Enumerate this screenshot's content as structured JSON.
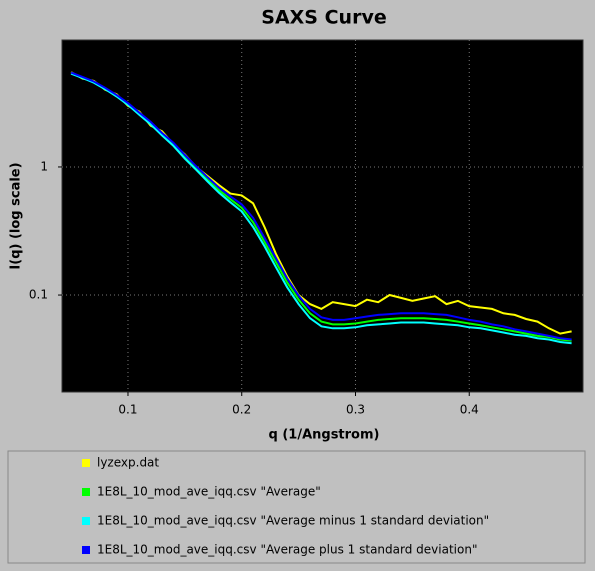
{
  "chart_data": {
    "type": "line",
    "title": "SAXS Curve",
    "xlabel": "q (1/Angstrom)",
    "ylabel": "I(q) (log scale)",
    "x": [
      0.05,
      0.06,
      0.07,
      0.08,
      0.09,
      0.1,
      0.11,
      0.12,
      0.13,
      0.14,
      0.15,
      0.16,
      0.17,
      0.18,
      0.19,
      0.2,
      0.21,
      0.22,
      0.23,
      0.24,
      0.25,
      0.26,
      0.27,
      0.28,
      0.29,
      0.3,
      0.31,
      0.32,
      0.33,
      0.34,
      0.35,
      0.36,
      0.37,
      0.38,
      0.39,
      0.4,
      0.41,
      0.42,
      0.43,
      0.44,
      0.45,
      0.46,
      0.47,
      0.48,
      0.49
    ],
    "series": [
      {
        "name": "lyzexp.dat",
        "color": "#ffff00",
        "values": [
          5.5,
          4.9,
          4.7,
          4.0,
          3.7,
          3.0,
          2.7,
          2.1,
          1.9,
          1.5,
          1.25,
          1.0,
          0.85,
          0.72,
          0.62,
          0.6,
          0.52,
          0.34,
          0.21,
          0.14,
          0.1,
          0.085,
          0.078,
          0.088,
          0.085,
          0.082,
          0.092,
          0.088,
          0.1,
          0.095,
          0.09,
          0.094,
          0.098,
          0.085,
          0.09,
          0.082,
          0.08,
          0.078,
          0.072,
          0.07,
          0.065,
          0.062,
          0.055,
          0.05,
          0.052
        ]
      },
      {
        "name": "1E8L_10_mod_ave_iqq.csv \"Average\"",
        "color": "#00ff00",
        "values": [
          5.4,
          5.0,
          4.6,
          4.1,
          3.6,
          3.1,
          2.6,
          2.2,
          1.8,
          1.5,
          1.2,
          0.98,
          0.8,
          0.66,
          0.56,
          0.48,
          0.37,
          0.26,
          0.18,
          0.125,
          0.092,
          0.072,
          0.062,
          0.059,
          0.059,
          0.06,
          0.062,
          0.064,
          0.065,
          0.066,
          0.066,
          0.066,
          0.065,
          0.064,
          0.062,
          0.06,
          0.058,
          0.056,
          0.054,
          0.052,
          0.05,
          0.048,
          0.047,
          0.045,
          0.044
        ]
      },
      {
        "name": "1E8L_10_mod_ave_iqq.csv \"Average minus 1 standard deviation\"",
        "color": "#00ffff",
        "values": [
          5.35,
          4.95,
          4.55,
          4.05,
          3.55,
          3.05,
          2.55,
          2.15,
          1.76,
          1.46,
          1.16,
          0.95,
          0.77,
          0.63,
          0.53,
          0.45,
          0.34,
          0.24,
          0.165,
          0.115,
          0.085,
          0.066,
          0.057,
          0.055,
          0.055,
          0.056,
          0.058,
          0.059,
          0.06,
          0.061,
          0.061,
          0.061,
          0.06,
          0.059,
          0.058,
          0.056,
          0.055,
          0.053,
          0.051,
          0.049,
          0.048,
          0.046,
          0.045,
          0.043,
          0.042
        ]
      },
      {
        "name": "1E8L_10_mod_ave_iqq.csv \"Average plus 1 standard deviation\"",
        "color": "#0000ff",
        "values": [
          5.45,
          5.05,
          4.65,
          4.15,
          3.65,
          3.15,
          2.65,
          2.25,
          1.84,
          1.54,
          1.24,
          1.01,
          0.83,
          0.69,
          0.59,
          0.51,
          0.4,
          0.28,
          0.195,
          0.135,
          0.099,
          0.078,
          0.067,
          0.064,
          0.064,
          0.066,
          0.068,
          0.07,
          0.071,
          0.072,
          0.072,
          0.072,
          0.071,
          0.07,
          0.067,
          0.064,
          0.062,
          0.059,
          0.057,
          0.054,
          0.052,
          0.05,
          0.048,
          0.046,
          0.045
        ]
      }
    ],
    "xlim": [
      0.042,
      0.5
    ],
    "xticks": [
      0.1,
      0.2,
      0.3,
      0.4
    ],
    "ylim": [
      0.0175,
      9.8
    ],
    "yticks": [
      0.1,
      1
    ],
    "ylog": true,
    "grid": true,
    "legend": "bottom"
  }
}
